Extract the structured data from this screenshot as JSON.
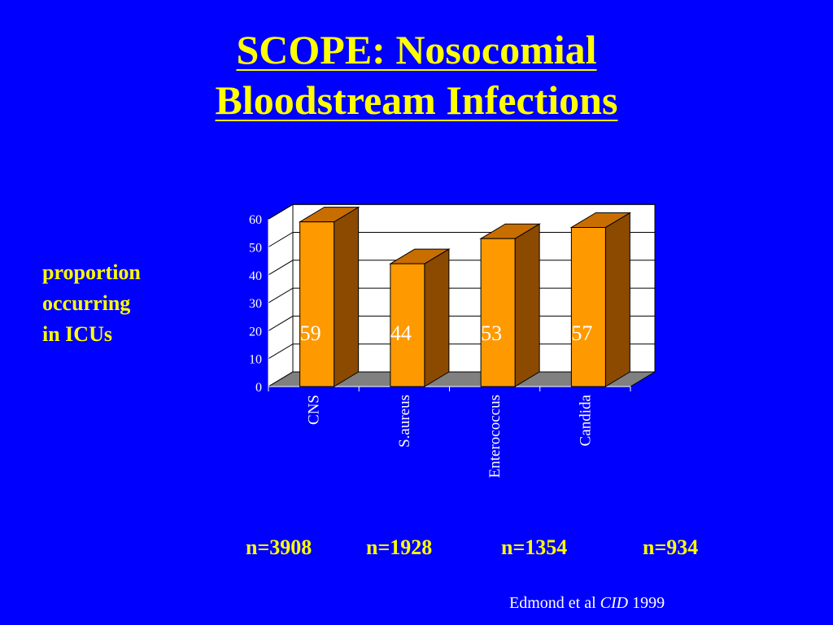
{
  "slide": {
    "title_line1": "SCOPE: Nosocomial",
    "title_line2": "Bloodstream Infections",
    "side_label": [
      "proportion",
      "occurring",
      "in ICUs"
    ],
    "n_counts": [
      "n=3908",
      "n=1928",
      "n=1354",
      "n=934"
    ],
    "citation": {
      "authors": "Edmond et al",
      "journal": "CID",
      "year": "1999"
    }
  },
  "chart_data": {
    "type": "bar",
    "categories": [
      "CNS",
      "S.aureus",
      "Enterococcus",
      "Candida"
    ],
    "values": [
      59,
      44,
      53,
      57
    ],
    "data_labels": [
      "59",
      "44",
      "53",
      "57"
    ],
    "ylabel": "proportion occurring in ICUs",
    "ylim": [
      0,
      60
    ],
    "yticks": [
      0,
      10,
      20,
      30,
      40,
      50,
      60
    ],
    "grid": true,
    "bar_style": "3d",
    "colors": {
      "bar_front": "#ff9900",
      "bar_side": "#8b4a00",
      "bar_top": "#c86e00",
      "floor": "#808080",
      "wall": "#ffffff",
      "label": "#ffffff"
    }
  }
}
